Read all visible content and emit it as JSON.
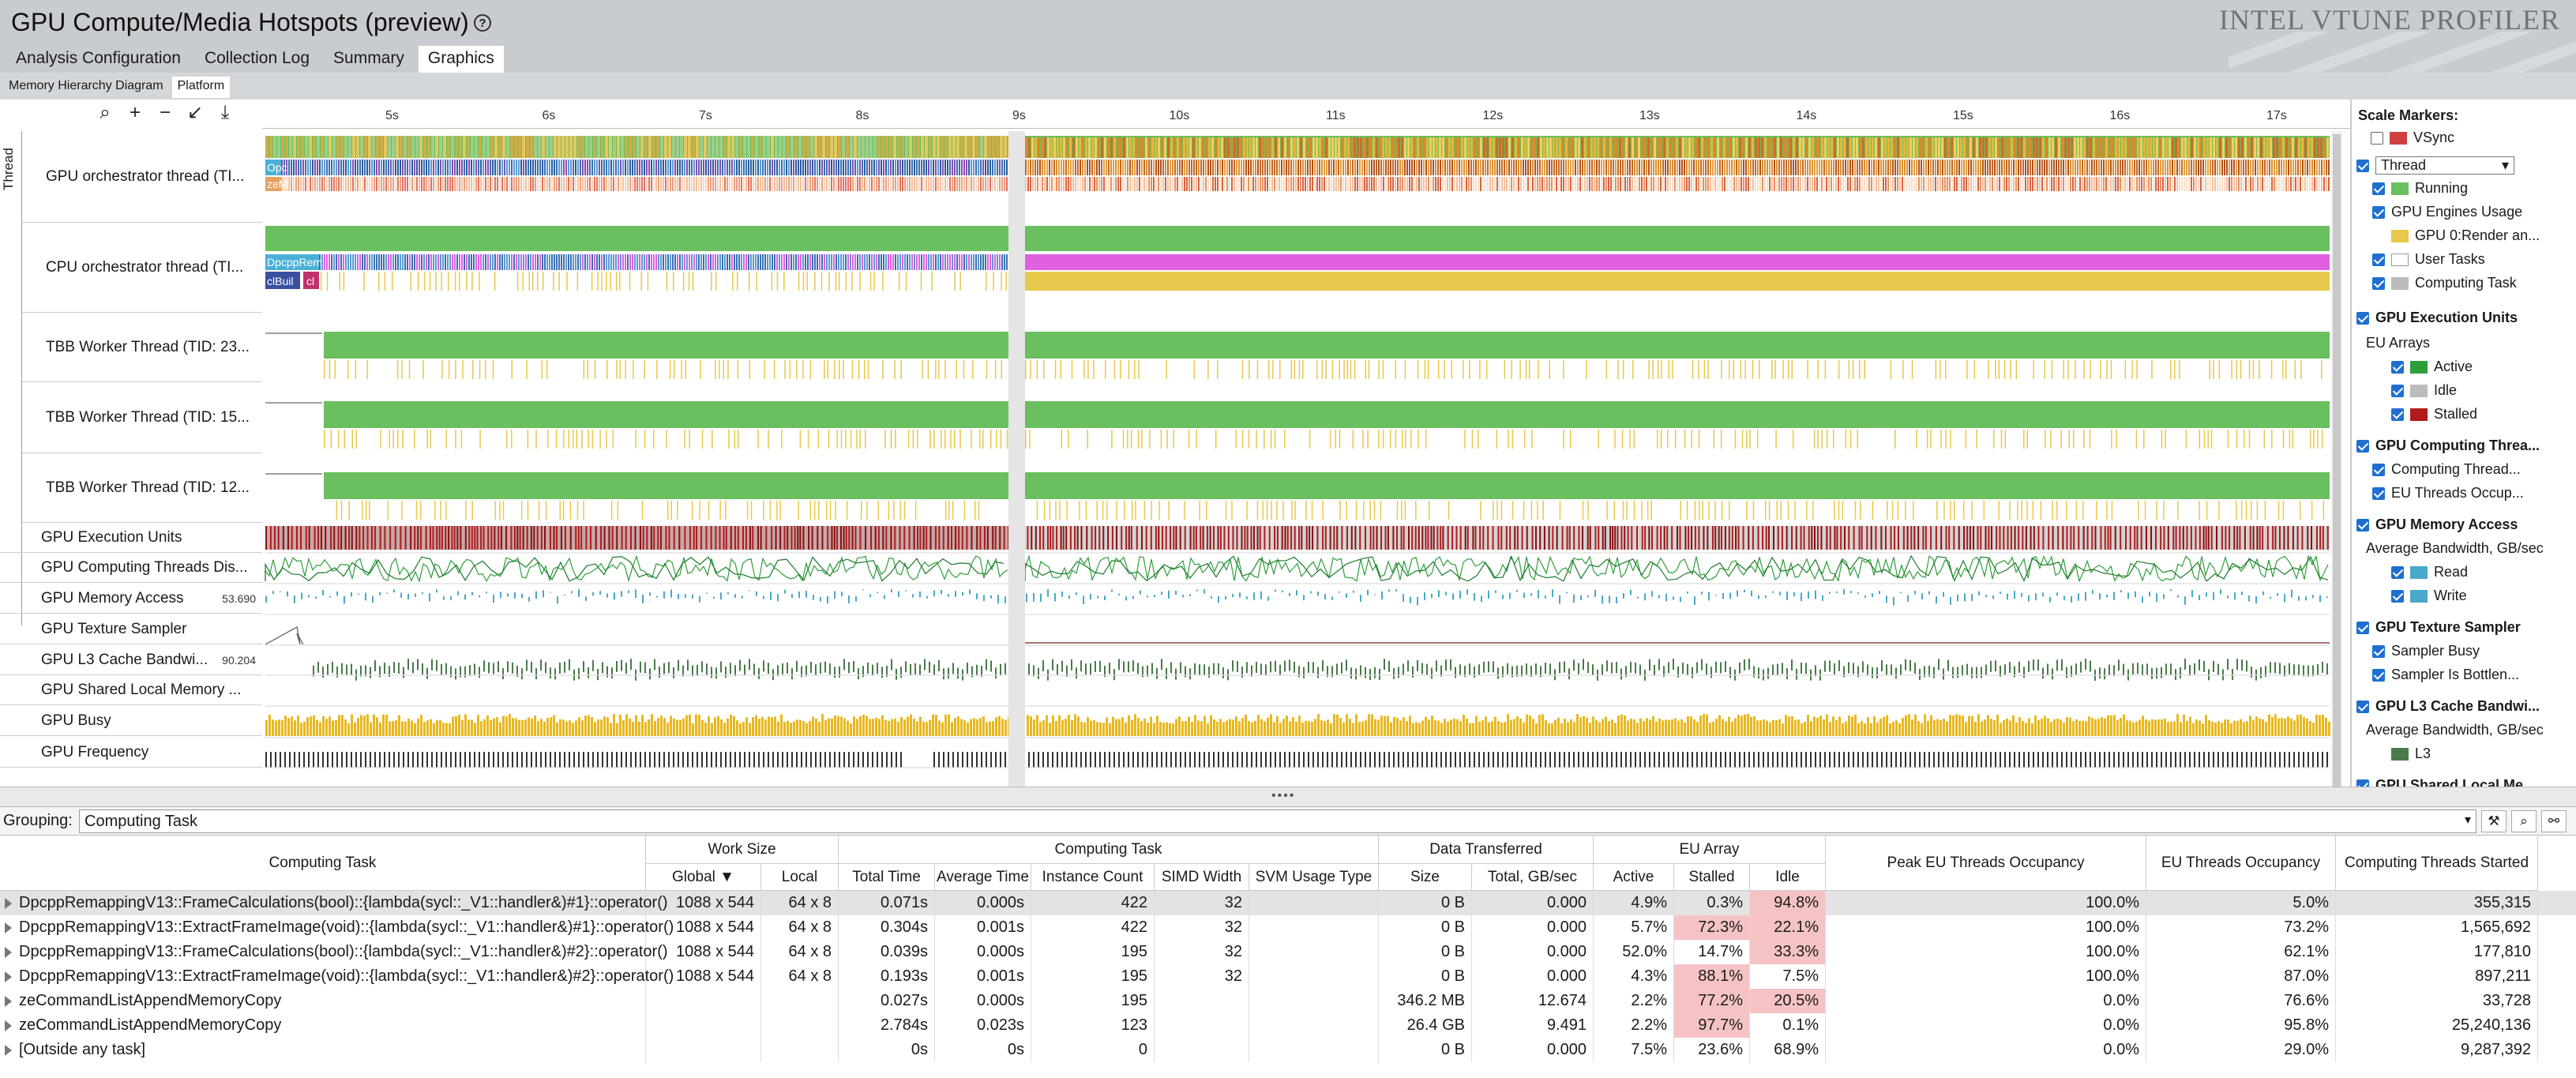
{
  "app": {
    "title": "GPU Compute/Media Hotspots (preview)",
    "brand": "INTEL VTUNE PROFILER"
  },
  "tabs": [
    "Analysis Configuration",
    "Collection Log",
    "Summary",
    "Graphics"
  ],
  "active_tab": "Graphics",
  "subtabs": [
    "Memory Hierarchy Diagram",
    "Platform"
  ],
  "active_subtab": "Platform",
  "timeline": {
    "ruler_ticks": [
      "5s",
      "6s",
      "7s",
      "8s",
      "9s",
      "10s",
      "11s",
      "12s",
      "13s",
      "14s",
      "15s",
      "16s",
      "17s"
    ],
    "thread_group_label": "Thread",
    "threads": [
      "GPU orchestrator thread (TI...",
      "CPU orchestrator thread (TI...",
      "TBB Worker Thread (TID: 23...",
      "TBB Worker Thread (TID: 15...",
      "TBB Worker Thread (TID: 12..."
    ],
    "task_labels": {
      "opc": "Opc",
      "zeM": "zeM",
      "dpcpp": "DpcppRem",
      "clbuil": "clBuil",
      "cl": "cl",
      "pa": "pa"
    },
    "metrics": [
      {
        "label": "GPU Execution Units",
        "value": ""
      },
      {
        "label": "GPU Computing Threads Dis...",
        "value": ""
      },
      {
        "label": "GPU Memory Access",
        "value": "53.690"
      },
      {
        "label": "GPU Texture Sampler",
        "value": ""
      },
      {
        "label": "GPU L3 Cache Bandwi...",
        "value": "90.204"
      },
      {
        "label": "GPU Shared Local Memory ...",
        "value": ""
      },
      {
        "label": "GPU Busy",
        "value": ""
      },
      {
        "label": "GPU Frequency",
        "value": ""
      }
    ]
  },
  "legend": {
    "scale_markers": "Scale Markers:",
    "vsync": "VSync",
    "thread_select": "Thread",
    "items": {
      "running": "Running",
      "gpu_engines": "GPU Engines Usage",
      "gpu0": "GPU 0:Render an...",
      "user_tasks": "User Tasks",
      "computing_task": "Computing Task",
      "gpu_eu": "GPU Execution Units",
      "eu_arrays": "EU Arrays",
      "active": "Active",
      "idle": "Idle",
      "stalled": "Stalled",
      "gpu_ct": "GPU Computing Threa...",
      "ct_dispatch": "Computing Thread...",
      "eu_occ": "EU Threads Occup...",
      "gpu_mem": "GPU Memory Access",
      "avg_bw": "Average Bandwidth, GB/sec",
      "read": "Read",
      "write": "Write",
      "gpu_tex": "GPU Texture Sampler",
      "sampler_busy": "Sampler Busy",
      "sampler_bottle": "Sampler Is Bottlen...",
      "gpu_l3": "GPU L3 Cache Bandwi...",
      "avg_bw2": "Average Bandwidth, GB/sec",
      "l3": "L3",
      "gpu_slm": "GPU Shared Local Me..."
    }
  },
  "grouping": {
    "label": "Grouping:",
    "value": "Computing Task"
  },
  "grid": {
    "group_headers": {
      "task": "Computing Task",
      "work_size": "Work Size",
      "computing_task": "Computing Task",
      "data_transferred": "Data Transferred",
      "eu_array": "EU Array",
      "peak": "Peak EU Threads Occupancy",
      "eu_occ": "EU Threads Occupancy",
      "ct_started": "Computing Threads Started"
    },
    "sub_headers": {
      "global": "Global ▼",
      "local": "Local",
      "total_time": "Total Time",
      "avg_time": "Average Time",
      "instance_count": "Instance Count",
      "simd_width": "SIMD Width",
      "svm": "SVM Usage Type",
      "size": "Size",
      "total_gb": "Total, GB/sec",
      "active": "Active",
      "stalled": "Stalled",
      "idle": "Idle"
    },
    "rows": [
      {
        "name": "DpcppRemappingV13::FrameCalculations(bool)::{lambda(sycl::_V1::handler&)#1}::operator()",
        "global": "1088 x 544",
        "local": "64 x 8",
        "total": "0.071s",
        "avg": "0.000s",
        "count": "422",
        "simd": "32",
        "svm": "",
        "size": "0 B",
        "gbs": "0.000",
        "active": "4.9%",
        "stalled": "0.3%",
        "idle": "94.8%",
        "peak": "100.0%",
        "occ": "5.0%",
        "started": "355,315",
        "pink_stalled": false,
        "pink_idle": true
      },
      {
        "name": "DpcppRemappingV13::ExtractFrameImage(void)::{lambda(sycl::_V1::handler&)#1}::operator()",
        "global": "1088 x 544",
        "local": "64 x 8",
        "total": "0.304s",
        "avg": "0.001s",
        "count": "422",
        "simd": "32",
        "svm": "",
        "size": "0 B",
        "gbs": "0.000",
        "active": "5.7%",
        "stalled": "72.3%",
        "idle": "22.1%",
        "peak": "100.0%",
        "occ": "73.2%",
        "started": "1,565,692",
        "pink_stalled": true,
        "pink_idle": true
      },
      {
        "name": "DpcppRemappingV13::FrameCalculations(bool)::{lambda(sycl::_V1::handler&)#2}::operator()",
        "global": "1088 x 544",
        "local": "64 x 8",
        "total": "0.039s",
        "avg": "0.000s",
        "count": "195",
        "simd": "32",
        "svm": "",
        "size": "0 B",
        "gbs": "0.000",
        "active": "52.0%",
        "stalled": "14.7%",
        "idle": "33.3%",
        "peak": "100.0%",
        "occ": "62.1%",
        "started": "177,810",
        "pink_stalled": false,
        "pink_idle": true
      },
      {
        "name": "DpcppRemappingV13::ExtractFrameImage(void)::{lambda(sycl::_V1::handler&)#2}::operator()",
        "global": "1088 x 544",
        "local": "64 x 8",
        "total": "0.193s",
        "avg": "0.001s",
        "count": "195",
        "simd": "32",
        "svm": "",
        "size": "0 B",
        "gbs": "0.000",
        "active": "4.3%",
        "stalled": "88.1%",
        "idle": "7.5%",
        "peak": "100.0%",
        "occ": "87.0%",
        "started": "897,211",
        "pink_stalled": true,
        "pink_idle": false
      },
      {
        "name": "zeCommandListAppendMemoryCopy",
        "global": "",
        "local": "",
        "total": "0.027s",
        "avg": "0.000s",
        "count": "195",
        "simd": "",
        "svm": "",
        "size": "346.2 MB",
        "gbs": "12.674",
        "active": "2.2%",
        "stalled": "77.2%",
        "idle": "20.5%",
        "peak": "0.0%",
        "occ": "76.6%",
        "started": "33,728",
        "pink_stalled": true,
        "pink_idle": true
      },
      {
        "name": "zeCommandListAppendMemoryCopy",
        "global": "",
        "local": "",
        "total": "2.784s",
        "avg": "0.023s",
        "count": "123",
        "simd": "",
        "svm": "",
        "size": "26.4 GB",
        "gbs": "9.491",
        "active": "2.2%",
        "stalled": "97.7%",
        "idle": "0.1%",
        "peak": "0.0%",
        "occ": "95.8%",
        "started": "25,240,136",
        "pink_stalled": true,
        "pink_idle": false
      },
      {
        "name": "[Outside any task]",
        "global": "",
        "local": "",
        "total": "0s",
        "avg": "0s",
        "count": "0",
        "simd": "",
        "svm": "",
        "size": "0 B",
        "gbs": "0.000",
        "active": "7.5%",
        "stalled": "23.6%",
        "idle": "68.9%",
        "peak": "0.0%",
        "occ": "29.0%",
        "started": "9,287,392",
        "pink_stalled": false,
        "pink_idle": false
      }
    ]
  },
  "colors": {
    "running": "#6abf5e",
    "user_task": "#e8c84a",
    "eu_active": "#2e9e3a",
    "eu_stalled": "#b01c1c",
    "eu_idle": "#bbbbbb",
    "mem_read": "#4aa8c8",
    "pink": "#f5c3c4",
    "gpu_busy": "#e8b820"
  }
}
